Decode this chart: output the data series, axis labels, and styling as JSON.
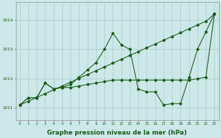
{
  "background_color": "#cce8e8",
  "grid_color": "#b0d0d0",
  "line_color": "#1a5c1a",
  "xlabel": "Graphe pression niveau de la mer (hPa)",
  "xlabel_fontsize": 6.5,
  "ylabel_ticks": [
    1011,
    1012,
    1013,
    1014
  ],
  "xlim": [
    -0.5,
    23.5
  ],
  "ylim": [
    1010.6,
    1014.6
  ],
  "x": [
    0,
    1,
    2,
    3,
    4,
    5,
    6,
    7,
    8,
    9,
    10,
    11,
    12,
    13,
    14,
    15,
    16,
    17,
    18,
    19,
    20,
    21,
    22,
    23
  ],
  "series_straight": [
    1011.1,
    1011.23,
    1011.36,
    1011.49,
    1011.62,
    1011.75,
    1011.88,
    1012.01,
    1012.14,
    1012.27,
    1012.4,
    1012.53,
    1012.66,
    1012.79,
    1012.92,
    1013.05,
    1013.18,
    1013.31,
    1013.44,
    1013.57,
    1013.7,
    1013.83,
    1013.96,
    1014.2
  ],
  "series_peaked": [
    1011.1,
    1011.35,
    1011.35,
    1011.85,
    1011.65,
    1011.7,
    1011.8,
    1012.05,
    1012.3,
    1012.55,
    1013.0,
    1013.55,
    1013.15,
    1013.0,
    1011.65,
    1011.55,
    1011.55,
    1011.1,
    1011.15,
    1011.15,
    1012.05,
    1013.0,
    1013.6,
    1014.2
  ],
  "series_flat": [
    1011.1,
    1011.35,
    1011.35,
    1011.85,
    1011.65,
    1011.7,
    1011.7,
    1011.75,
    1011.8,
    1011.85,
    1011.9,
    1011.95,
    1011.95,
    1011.95,
    1011.95,
    1011.95,
    1011.95,
    1011.95,
    1011.95,
    1011.95,
    1011.95,
    1012.0,
    1012.05,
    1014.2
  ]
}
